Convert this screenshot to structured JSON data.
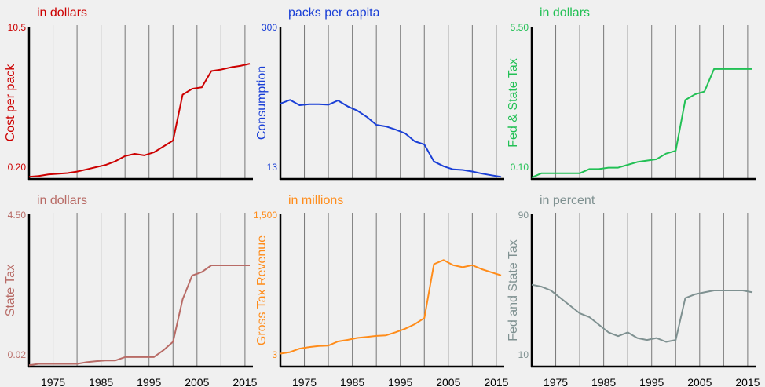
{
  "chart_data": [
    {
      "type": "line",
      "title": "in dollars",
      "ylabel": "Cost per pack",
      "ylim": [
        0.2,
        10.5
      ],
      "y_ticks": [
        "10.5",
        "0.20"
      ],
      "color": "#cc0000",
      "x_ticks": [],
      "series": [
        {
          "x": [
            1970,
            1972,
            1974,
            1976,
            1978,
            1980,
            1982,
            1984,
            1986,
            1988,
            1990,
            1992,
            1994,
            1996,
            1998,
            2000,
            2002,
            2004,
            2006,
            2008,
            2010,
            2012,
            2014,
            2016
          ],
          "values": [
            0.35,
            0.4,
            0.5,
            0.55,
            0.6,
            0.7,
            0.85,
            1.0,
            1.15,
            1.4,
            1.75,
            1.9,
            1.8,
            2.0,
            2.4,
            2.8,
            5.9,
            6.3,
            6.4,
            7.5,
            7.6,
            7.75,
            7.85,
            8.0
          ]
        }
      ]
    },
    {
      "type": "line",
      "title": "packs per capita",
      "ylabel": "Consumption",
      "ylim": [
        13,
        300
      ],
      "y_ticks": [
        "300",
        "13"
      ],
      "color": "#1a3fd6",
      "x_ticks": [],
      "series": [
        {
          "x": [
            1970,
            1972,
            1974,
            1976,
            1978,
            1980,
            1982,
            1984,
            1986,
            1988,
            1990,
            1992,
            1994,
            1996,
            1998,
            2000,
            2002,
            2004,
            2006,
            2008,
            2010,
            2012,
            2014,
            2016
          ],
          "values": [
            155,
            162,
            152,
            154,
            154,
            153,
            161,
            150,
            142,
            130,
            115,
            112,
            106,
            99,
            84,
            78,
            46,
            37,
            31,
            30,
            27,
            23,
            20,
            17
          ]
        }
      ]
    },
    {
      "type": "line",
      "title": "in dollars",
      "ylabel": "Fed & State Tax",
      "ylim": [
        0.1,
        5.5
      ],
      "y_ticks": [
        "5.50",
        "0.10"
      ],
      "color": "#22c055",
      "x_ticks": [],
      "series": [
        {
          "x": [
            1970,
            1972,
            1974,
            1976,
            1978,
            1980,
            1982,
            1984,
            1986,
            1988,
            1990,
            1992,
            1994,
            1996,
            1998,
            2000,
            2002,
            2004,
            2006,
            2008,
            2010,
            2012,
            2014,
            2016
          ],
          "values": [
            0.15,
            0.3,
            0.3,
            0.3,
            0.3,
            0.3,
            0.45,
            0.45,
            0.5,
            0.5,
            0.6,
            0.7,
            0.75,
            0.8,
            1.0,
            1.1,
            2.9,
            3.1,
            3.2,
            4.0,
            4.0,
            4.0,
            4.0,
            4.0
          ]
        }
      ]
    },
    {
      "type": "line",
      "title": "in dollars",
      "ylabel": "State Tax",
      "ylim": [
        0.02,
        4.5
      ],
      "y_ticks": [
        "4.50",
        "0.02"
      ],
      "color": "#b86b66",
      "x_ticks": [
        "1975",
        "1985",
        "1995",
        "2005",
        "2015"
      ],
      "series": [
        {
          "x": [
            1970,
            1972,
            1974,
            1976,
            1978,
            1980,
            1982,
            1984,
            1986,
            1988,
            1990,
            1992,
            1994,
            1996,
            1998,
            2000,
            2002,
            2004,
            2006,
            2008,
            2010,
            2012,
            2014,
            2016
          ],
          "values": [
            0.06,
            0.1,
            0.1,
            0.1,
            0.1,
            0.1,
            0.15,
            0.18,
            0.2,
            0.2,
            0.3,
            0.3,
            0.3,
            0.3,
            0.5,
            0.75,
            2.0,
            2.7,
            2.8,
            3.0,
            3.0,
            3.0,
            3.0,
            3.0
          ]
        }
      ]
    },
    {
      "type": "line",
      "title": "in millions",
      "ylabel": "Gross Tax Revenue",
      "ylim": [
        3,
        1500
      ],
      "y_ticks": [
        "1,500",
        "3"
      ],
      "color": "#ff8c1a",
      "x_ticks": [
        "1975",
        "1985",
        "1995",
        "2005",
        "2015"
      ],
      "series": [
        {
          "x": [
            1970,
            1972,
            1974,
            1976,
            1978,
            1980,
            1982,
            1984,
            1986,
            1988,
            1990,
            1992,
            1994,
            1996,
            1998,
            2000,
            2002,
            2004,
            2006,
            2008,
            2010,
            2012,
            2014,
            2016
          ],
          "values": [
            130,
            145,
            180,
            195,
            205,
            210,
            250,
            265,
            285,
            295,
            305,
            310,
            340,
            375,
            420,
            480,
            1010,
            1050,
            1000,
            980,
            1000,
            960,
            930,
            900
          ]
        }
      ]
    },
    {
      "type": "line",
      "title": "in percent",
      "ylabel": "Fed and State Tax",
      "ylim": [
        10,
        90
      ],
      "y_ticks": [
        "90",
        "10"
      ],
      "color": "#7f9191",
      "x_ticks": [
        "1975",
        "1985",
        "1995",
        "2005",
        "2015"
      ],
      "series": [
        {
          "x": [
            1970,
            1972,
            1974,
            1976,
            1978,
            1980,
            1982,
            1984,
            1986,
            1988,
            1990,
            1992,
            1994,
            1996,
            1998,
            2000,
            2002,
            2004,
            2006,
            2008,
            2010,
            2012,
            2014,
            2016
          ],
          "values": [
            53,
            52,
            50,
            46,
            42,
            38,
            36,
            32,
            28,
            26,
            28,
            25,
            24,
            25,
            23,
            24,
            46,
            48,
            49,
            50,
            50,
            50,
            50,
            49
          ]
        }
      ]
    }
  ]
}
